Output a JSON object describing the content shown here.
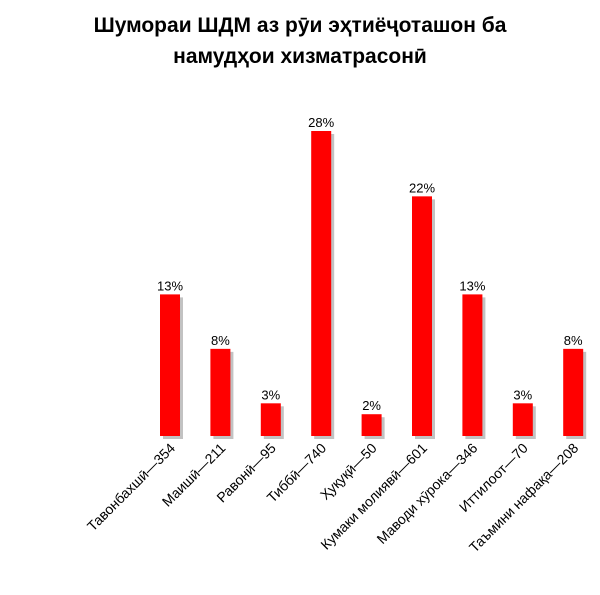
{
  "chart_data": {
    "type": "bar",
    "title": [
      "Шумораи ШДМ аз рӯи эҳтиёҷоташон ба",
      "намудҳои хизматрасонӣ"
    ],
    "categories": [
      "Тавонбахшӣ—354",
      "Маишӣ—211",
      "Равонӣ—95",
      "Тиббӣ—740",
      "Ҳуқуқӣ—50",
      "Кумаки молиявӣ—601",
      "Маводи хӯрока—346",
      "Иттилоот—70",
      "Таъмини нафақа—208"
    ],
    "values": [
      13,
      8,
      3,
      28,
      2,
      22,
      13,
      3,
      8
    ],
    "data_labels": [
      "13%",
      "8%",
      "3%",
      "28%",
      "2%",
      "22%",
      "13%",
      "3%",
      "8%"
    ],
    "unit": "%",
    "xlabel": "",
    "ylabel": "",
    "ylim": [
      0,
      28
    ],
    "grid": false,
    "legend": "none",
    "colors": {
      "bar": "#ff0000",
      "shadow": "#9a9a9a"
    }
  }
}
